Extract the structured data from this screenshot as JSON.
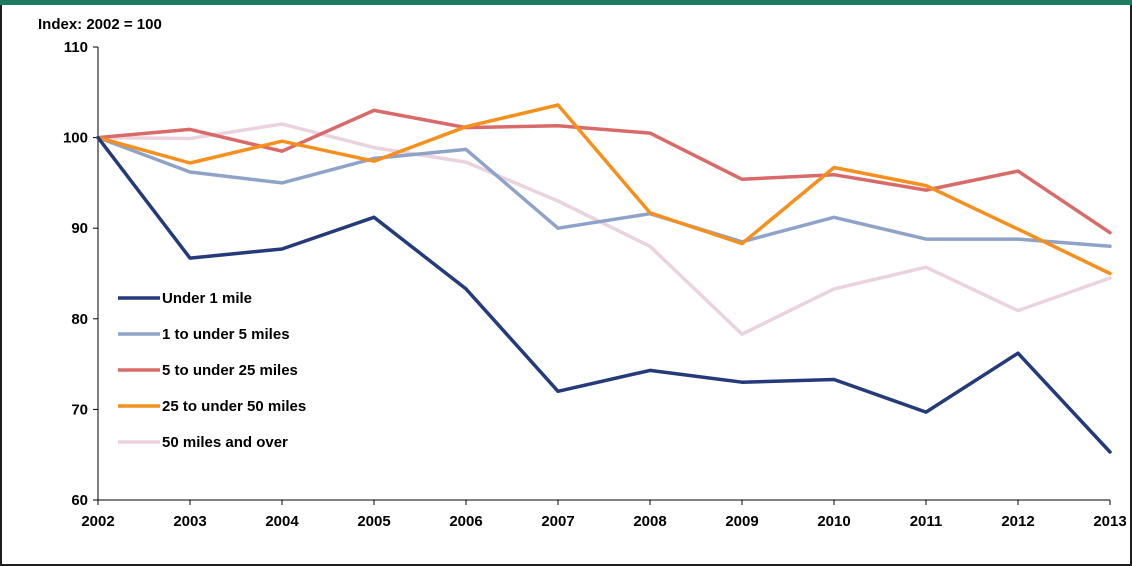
{
  "chart_data": {
    "type": "line",
    "axis_note": "Index: 2002 = 100",
    "x": [
      "2002",
      "2003",
      "2004",
      "2005",
      "2006",
      "2007",
      "2008",
      "2009",
      "2010",
      "2011",
      "2012",
      "2013"
    ],
    "ylim": [
      60,
      110
    ],
    "yticks": [
      60,
      70,
      80,
      90,
      100,
      110
    ],
    "grid": false,
    "legend_position": "left",
    "series": [
      {
        "name": "Under 1 mile",
        "color": "#243a7a",
        "values": [
          100,
          86.7,
          87.7,
          91.2,
          83.3,
          72.0,
          74.3,
          73.0,
          73.3,
          69.7,
          76.2,
          65.3
        ]
      },
      {
        "name": "1 to under 5 miles",
        "color": "#8fa3c8",
        "values": [
          100,
          96.2,
          95.0,
          97.7,
          98.7,
          90.0,
          91.6,
          88.5,
          91.2,
          88.8,
          88.8,
          88.0
        ]
      },
      {
        "name": "5 to under 25 miles",
        "color": "#d96a6a",
        "values": [
          100,
          100.9,
          98.5,
          103.0,
          101.1,
          101.3,
          100.5,
          95.4,
          95.9,
          94.2,
          96.3,
          89.5
        ]
      },
      {
        "name": "25 to under 50 miles",
        "color": "#f5901e",
        "values": [
          100,
          97.2,
          99.6,
          97.4,
          101.2,
          103.6,
          91.7,
          88.3,
          96.7,
          94.7,
          89.9,
          85.0
        ]
      },
      {
        "name": "50 miles and over",
        "color": "#ead3df",
        "values": [
          100,
          99.9,
          101.5,
          98.9,
          97.3,
          93.0,
          88.0,
          78.3,
          83.3,
          85.7,
          80.9,
          84.5
        ]
      }
    ]
  }
}
